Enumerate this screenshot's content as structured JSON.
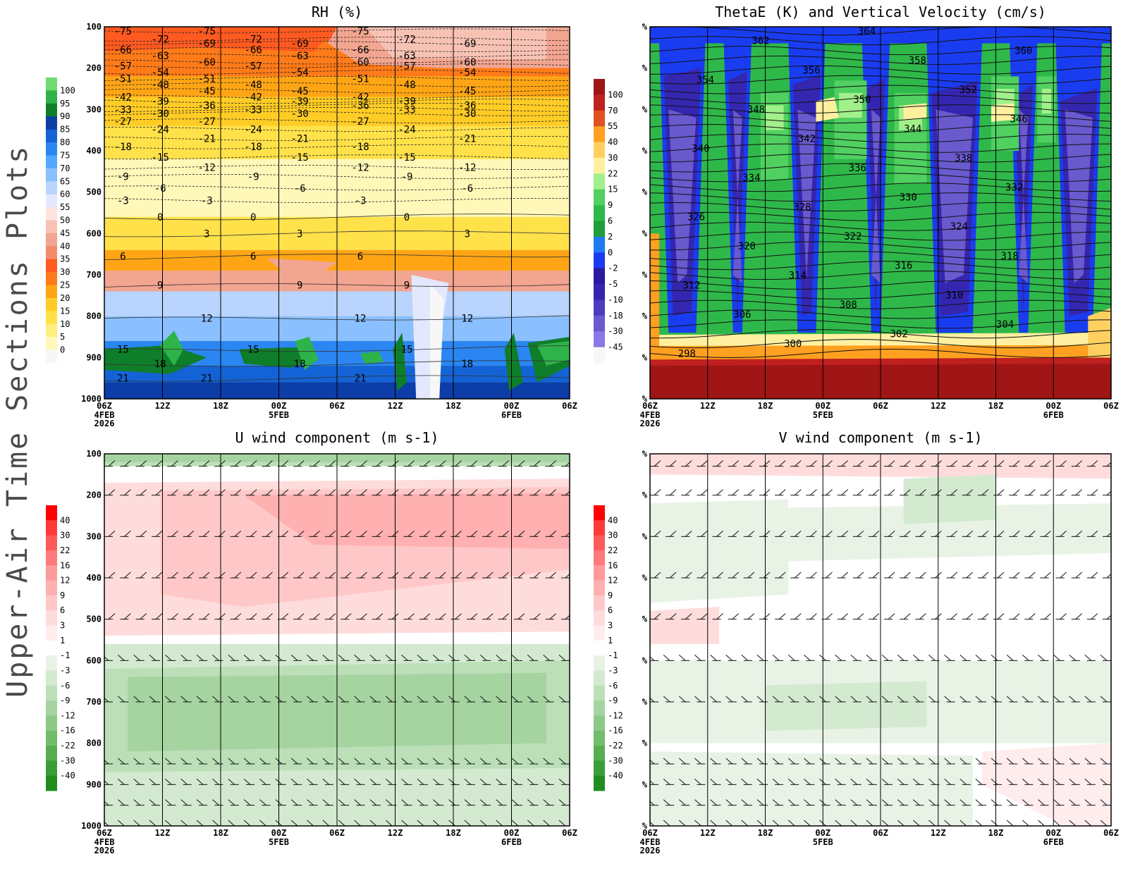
{
  "side_title": "Upper-Air Time Sections Plots",
  "time_axis": {
    "labels": [
      "06Z",
      "12Z",
      "18Z",
      "00Z",
      "06Z",
      "12Z",
      "18Z",
      "00Z",
      "06Z"
    ],
    "date_labels": [
      [
        "4FEB",
        "2026"
      ],
      [],
      [],
      [
        "5FEB"
      ],
      [],
      [],
      [],
      [
        "6FEB"
      ],
      []
    ]
  },
  "chart_data": [
    {
      "id": "rh",
      "type": "heatmap",
      "title": "RH (%)",
      "x": [
        "06Z 4FEB 2026",
        "12Z",
        "18Z",
        "00Z 5FEB",
        "06Z",
        "12Z",
        "18Z",
        "00Z 6FEB",
        "06Z"
      ],
      "y_ticks": [
        "100",
        "200",
        "300",
        "400",
        "500",
        "600",
        "700",
        "800",
        "900",
        "1000"
      ],
      "ylim": [
        100,
        1000
      ],
      "y_inverted": true,
      "colorbar": {
        "labels": [
          "0",
          "5",
          "10",
          "15",
          "20",
          "25",
          "30",
          "35",
          "40",
          "45",
          "50",
          "55",
          "60",
          "65",
          "70",
          "75",
          "80",
          "85",
          "90",
          "95",
          "100"
        ],
        "colors": [
          "#f7f7f7",
          "#fff8b8",
          "#ffef80",
          "#ffe14a",
          "#ffcc26",
          "#ffa515",
          "#ff7a18",
          "#ff5a20",
          "#f58a6a",
          "#f2a590",
          "#f7c2b4",
          "#fce3dc",
          "#e4e8ff",
          "#b8d4ff",
          "#8ac0ff",
          "#52a8ff",
          "#2a86f2",
          "#1463d6",
          "#0d3da6",
          "#0f7e2a",
          "#2eb34a",
          "#6fdc6f"
        ]
      },
      "temperature_contours": [
        {
          "value": -75,
          "p": 110
        },
        {
          "value": -72,
          "p": 130
        },
        {
          "value": -69,
          "p": 140
        },
        {
          "value": -66,
          "p": 155
        },
        {
          "value": -63,
          "p": 170
        },
        {
          "value": -60,
          "p": 185
        },
        {
          "value": -57,
          "p": 195
        },
        {
          "value": -54,
          "p": 210
        },
        {
          "value": -51,
          "p": 225
        },
        {
          "value": -48,
          "p": 240
        },
        {
          "value": -45,
          "p": 255
        },
        {
          "value": -42,
          "p": 270
        },
        {
          "value": -39,
          "p": 280
        },
        {
          "value": -36,
          "p": 290
        },
        {
          "value": -33,
          "p": 300
        },
        {
          "value": -30,
          "p": 310
        },
        {
          "value": -27,
          "p": 328
        },
        {
          "value": -24,
          "p": 348
        },
        {
          "value": -21,
          "p": 370
        },
        {
          "value": -18,
          "p": 390
        },
        {
          "value": -15,
          "p": 415
        },
        {
          "value": -12,
          "p": 440
        },
        {
          "value": -9,
          "p": 462
        },
        {
          "value": -6,
          "p": 490
        },
        {
          "value": -3,
          "p": 520
        },
        {
          "value": 0,
          "p": 560
        },
        {
          "value": 3,
          "p": 600
        },
        {
          "value": 6,
          "p": 655
        },
        {
          "value": 9,
          "p": 725
        },
        {
          "value": 12,
          "p": 805
        },
        {
          "value": 15,
          "p": 880
        },
        {
          "value": 18,
          "p": 915
        },
        {
          "value": 21,
          "p": 950
        }
      ]
    },
    {
      "id": "thetae",
      "type": "heatmap",
      "title": "ThetaE (K) and Vertical Velocity (cm/s)",
      "x": [
        "06Z 4FEB 2026",
        "12Z",
        "18Z",
        "00Z 5FEB",
        "06Z",
        "12Z",
        "18Z",
        "00Z 6FEB",
        "06Z"
      ],
      "y_ticks": [
        "%",
        "%",
        "%",
        "%",
        "%",
        "%",
        "%",
        "%",
        "%",
        "%"
      ],
      "colorbar": {
        "labels": [
          "-45",
          "-30",
          "-18",
          "-10",
          "-5",
          "-2",
          "0",
          "2",
          "6",
          "9",
          "15",
          "22",
          "30",
          "40",
          "55",
          "70",
          "100"
        ],
        "colors": [
          "#f7f7f7",
          "#8a78e6",
          "#6a5acd",
          "#4d3cc0",
          "#3526b0",
          "#2a1aa0",
          "#1a3cf0",
          "#1e7cf0",
          "#1f9e3a",
          "#2fb84a",
          "#50d060",
          "#a2f08a",
          "#fff0a0",
          "#ffd060",
          "#ffa020",
          "#e05020",
          "#c02020",
          "#a01515"
        ]
      },
      "thetae_contours": [
        298,
        300,
        302,
        304,
        306,
        308,
        310,
        312,
        314,
        316,
        318,
        320,
        322,
        324,
        326,
        328,
        330,
        332,
        334,
        336,
        338,
        340,
        342,
        344,
        346,
        348,
        350,
        352,
        354,
        356,
        358,
        360,
        362,
        364
      ]
    },
    {
      "id": "u",
      "type": "heatmap",
      "title": "U wind component (m s-1)",
      "x": [
        "06Z 4FEB 2026",
        "12Z",
        "18Z",
        "00Z 5FEB",
        "06Z",
        "12Z",
        "18Z",
        "00Z 6FEB",
        "06Z"
      ],
      "y_ticks": [
        "100",
        "200",
        "300",
        "400",
        "500",
        "600",
        "700",
        "800",
        "900",
        "1000"
      ],
      "colorbar": {
        "labels": [
          "40",
          "30",
          "22",
          "16",
          "12",
          "9",
          "6",
          "3",
          "1",
          "-1",
          "-3",
          "-6",
          "-9",
          "-12",
          "-16",
          "-22",
          "-30",
          "-40"
        ],
        "colors": [
          "#ff0000",
          "#ff3a3a",
          "#ff5a5a",
          "#ff7a7a",
          "#ff9a9a",
          "#ffb0b0",
          "#ffc8c8",
          "#ffdcdc",
          "#ffeded",
          "#ffffff",
          "#e8f3e6",
          "#d3ead0",
          "#bcdfb8",
          "#a5d4a0",
          "#8cc987",
          "#72bd6c",
          "#56ae50",
          "#3a9e36",
          "#1f8e1f"
        ]
      },
      "fields": {
        "upper_band_sign": "positive",
        "lower_band_sign": "negative",
        "max_positive_approx": 22,
        "min_negative_approx": -12
      }
    },
    {
      "id": "v",
      "type": "heatmap",
      "title": "V wind component (m s-1)",
      "x": [
        "06Z 4FEB 2026",
        "12Z",
        "18Z",
        "00Z 5FEB",
        "06Z",
        "12Z",
        "18Z",
        "00Z 6FEB",
        "06Z"
      ],
      "y_ticks": [
        "%",
        "%",
        "%",
        "%",
        "%",
        "%",
        "%",
        "%",
        "%",
        "%"
      ],
      "colorbar": {
        "labels": [
          "40",
          "30",
          "22",
          "16",
          "12",
          "9",
          "6",
          "3",
          "1",
          "-1",
          "-3",
          "-6",
          "-9",
          "-12",
          "-16",
          "-22",
          "-30",
          "-40"
        ],
        "colors": [
          "#ff0000",
          "#ff3a3a",
          "#ff5a5a",
          "#ff7a7a",
          "#ff9a9a",
          "#ffb0b0",
          "#ffc8c8",
          "#ffdcdc",
          "#ffeded",
          "#ffffff",
          "#e8f3e6",
          "#d3ead0",
          "#bcdfb8",
          "#a5d4a0",
          "#8cc987",
          "#72bd6c",
          "#56ae50",
          "#3a9e36",
          "#1f8e1f"
        ]
      },
      "fields": {
        "max_positive_approx": 6,
        "min_negative_approx": -6
      }
    }
  ]
}
